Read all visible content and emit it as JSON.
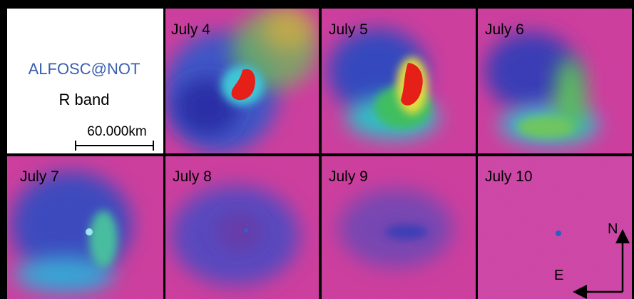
{
  "legend_panel": {
    "instrument": "ALFOSC@NOT",
    "band": "R band",
    "scale_bar": "60.000km"
  },
  "panels": [
    {
      "label": "July 4"
    },
    {
      "label": "July 5"
    },
    {
      "label": "July 6"
    },
    {
      "label": "July 7"
    },
    {
      "label": "July 8"
    },
    {
      "label": "July 9"
    },
    {
      "label": "July 10"
    }
  ],
  "compass": {
    "north": "N",
    "east": "E"
  }
}
